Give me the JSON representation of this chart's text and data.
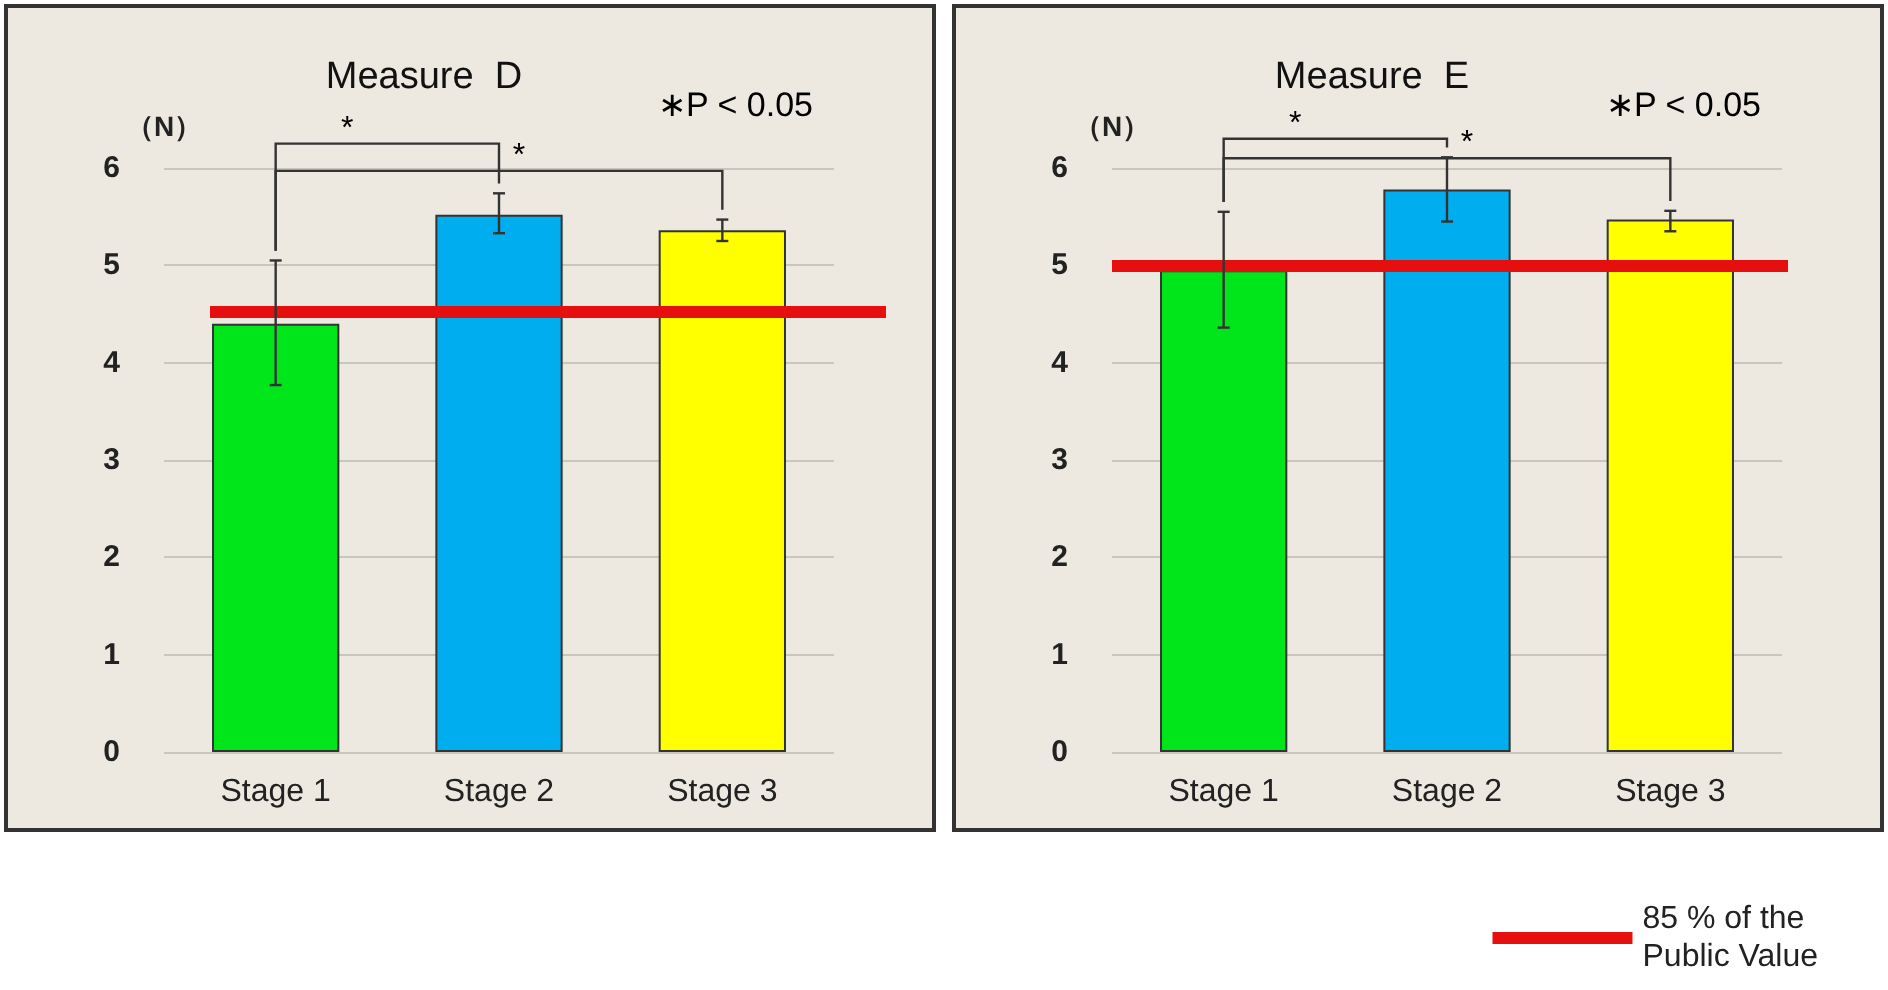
{
  "chart_data": [
    {
      "type": "bar",
      "title": "Measure  D",
      "ylabel": "（N）",
      "categories": [
        "Stage 1",
        "Stage 2",
        "Stage 3"
      ],
      "values": [
        4.4,
        5.52,
        5.36
      ],
      "colors": [
        "#00e61a",
        "#00aeef",
        "#ffff00"
      ],
      "errors": [
        [
          3.77,
          5.05
        ],
        [
          5.33,
          5.74
        ],
        [
          5.25,
          5.47
        ]
      ],
      "ylim": [
        0,
        6
      ],
      "yticks": [
        0,
        1,
        2,
        3,
        4,
        5,
        6
      ],
      "grid": "y",
      "ref_lines": [
        {
          "axis": "y",
          "value": 4.53,
          "color": "#e60f0f"
        }
      ],
      "annotations": [
        "∗P < 0.05",
        "*",
        "*"
      ]
    },
    {
      "type": "bar",
      "title": "Measure  E",
      "ylabel": "（N）",
      "categories": [
        "Stage 1",
        "Stage 2",
        "Stage 3"
      ],
      "values": [
        4.95,
        5.78,
        5.47
      ],
      "colors": [
        "#00e61a",
        "#00aeef",
        "#ffff00"
      ],
      "errors": [
        [
          4.36,
          5.55
        ],
        [
          5.45,
          6.11
        ],
        [
          5.35,
          5.56
        ]
      ],
      "ylim": [
        0,
        6
      ],
      "yticks": [
        0,
        1,
        2,
        3,
        4,
        5,
        6
      ],
      "grid": "y",
      "ref_lines": [
        {
          "axis": "y",
          "value": 5,
          "color": "#e60f0f",
          "label": "85 % of the\nPublic Value"
        }
      ],
      "legend": "bottom right",
      "annotations": [
        "∗P < 0.05",
        "*",
        "*"
      ]
    }
  ]
}
